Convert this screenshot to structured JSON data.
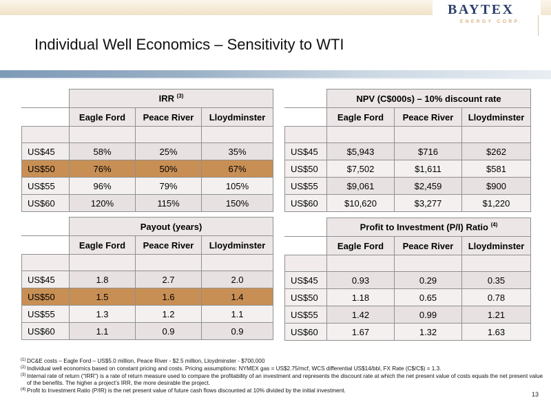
{
  "header": {
    "logo_main": "BAYTEX",
    "logo_sub": "ENERGY CORP."
  },
  "title": "Individual Well Economics – Sensitivity to WTI",
  "columns": [
    "Eagle Ford",
    "Peace River",
    "Lloydminster"
  ],
  "tables": {
    "irr": {
      "title": "IRR",
      "note": "(3)",
      "rows": [
        {
          "label": "US$45",
          "values": [
            "58%",
            "25%",
            "35%"
          ]
        },
        {
          "label": "US$50",
          "values": [
            "76%",
            "50%",
            "67%"
          ]
        },
        {
          "label": "US$55",
          "values": [
            "96%",
            "79%",
            "105%"
          ]
        },
        {
          "label": "US$60",
          "values": [
            "120%",
            "115%",
            "150%"
          ]
        }
      ]
    },
    "npv": {
      "title": "NPV (C$000s) – 10% discount rate",
      "rows": [
        {
          "label": "US$45",
          "values": [
            "$5,943",
            "$716",
            "$262"
          ]
        },
        {
          "label": "US$50",
          "values": [
            "$7,502",
            "$1,611",
            "$581"
          ]
        },
        {
          "label": "US$55",
          "values": [
            "$9,061",
            "$2,459",
            "$900"
          ]
        },
        {
          "label": "US$60",
          "values": [
            "$10,620",
            "$3,277",
            "$1,220"
          ]
        }
      ]
    },
    "payout": {
      "title": "Payout (years)",
      "rows": [
        {
          "label": "US$45",
          "values": [
            "1.8",
            "2.7",
            "2.0"
          ]
        },
        {
          "label": "US$50",
          "values": [
            "1.5",
            "1.6",
            "1.4"
          ]
        },
        {
          "label": "US$55",
          "values": [
            "1.3",
            "1.2",
            "1.1"
          ]
        },
        {
          "label": "US$60",
          "values": [
            "1.1",
            "0.9",
            "0.9"
          ]
        }
      ]
    },
    "pi": {
      "title": "Profit to Investment (P/I) Ratio",
      "note": "(4)",
      "rows": [
        {
          "label": "US$45",
          "values": [
            "0.93",
            "0.29",
            "0.35"
          ]
        },
        {
          "label": "US$50",
          "values": [
            "1.18",
            "0.65",
            "0.78"
          ]
        },
        {
          "label": "US$55",
          "values": [
            "1.42",
            "0.99",
            "1.21"
          ]
        },
        {
          "label": "US$60",
          "values": [
            "1.67",
            "1.32",
            "1.63"
          ]
        }
      ]
    }
  },
  "footnotes": [
    {
      "num": "(1)",
      "text": "DC&E costs – Eagle Ford – US$5.0 million, Peace River - $2.5 million, Lloydminster - $700,000"
    },
    {
      "num": "(2)",
      "text": "Individual well economics based on constant pricing and costs. Pricing assumptions:  NYMEX gas = US$2.75/mcf, WCS differential US$14/bbl, FX Rate (C$/C$) = 1.3."
    },
    {
      "num": "(3)",
      "text": "Internal rate of return (“IRR”) is a rate of return measure used to compare the profitability of an investment and represents the discount rate at which the net present value of costs equals the net present value of the benefits. The higher a project’s IRR, the more desirable the project."
    },
    {
      "num": "(4)",
      "text": "Profit to Investment Ratio (P/IR) is the net present value of future cash flows discounted at 10% divided by the initial investment."
    }
  ],
  "page_number": "13"
}
